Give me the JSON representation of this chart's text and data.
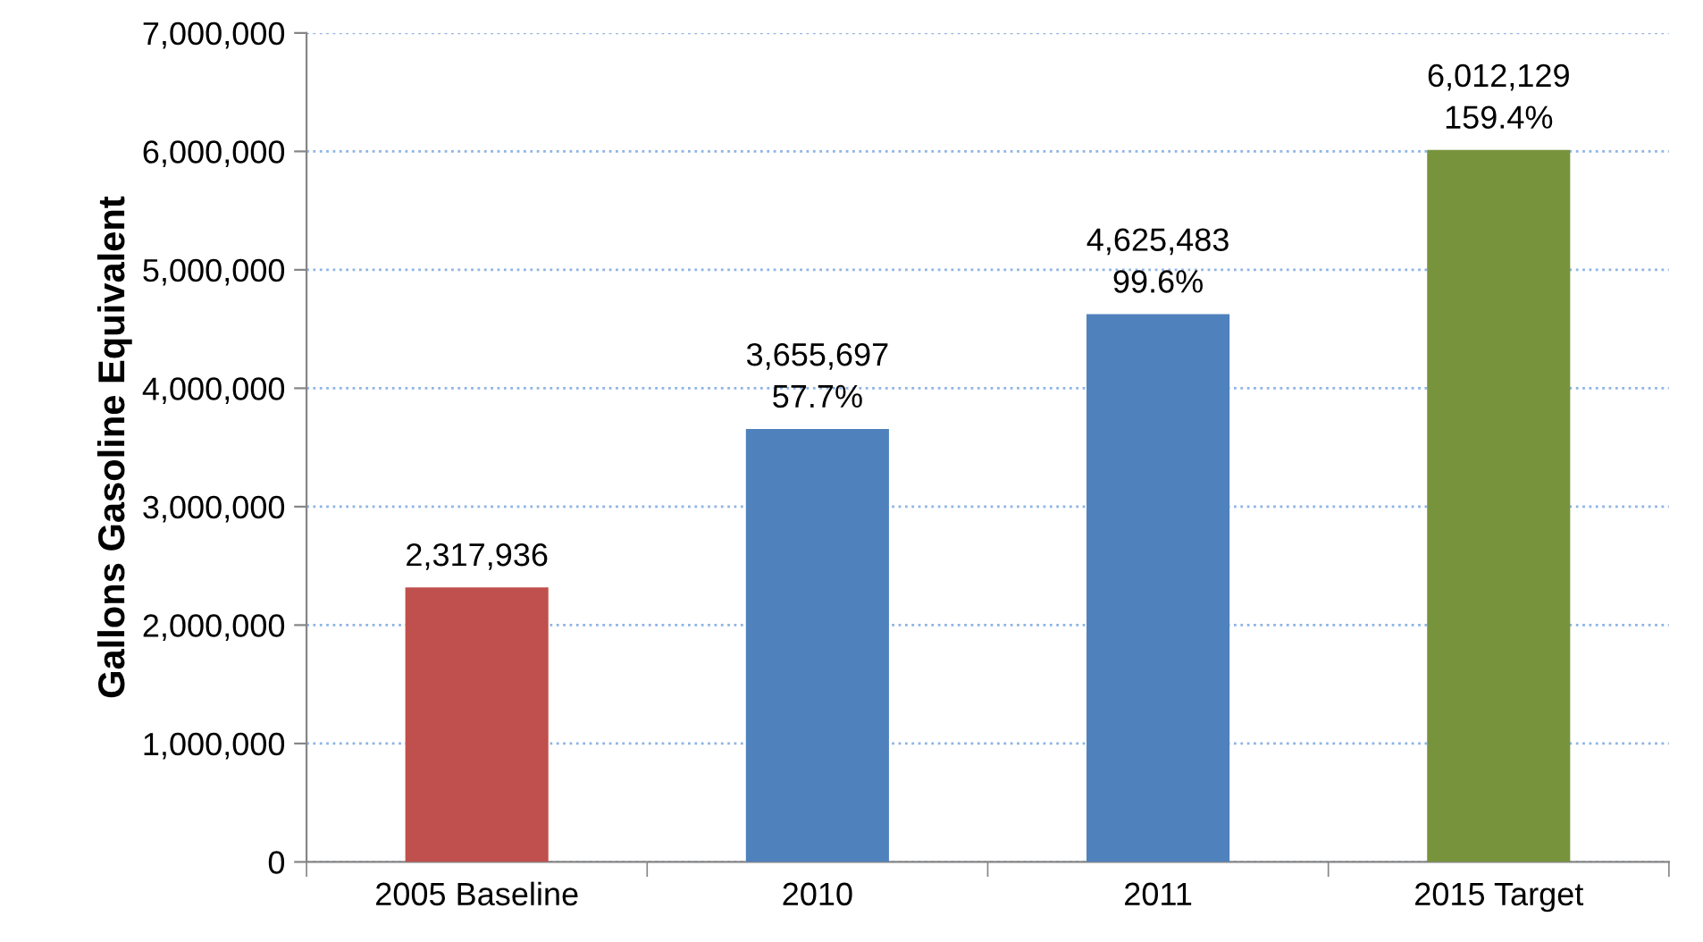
{
  "chart_data": {
    "type": "bar",
    "ylabel": "Gallons Gasoline Equivalent",
    "categories": [
      "2005 Baseline",
      "2010",
      "2011",
      "2015 Target"
    ],
    "values": [
      2317936,
      3655697,
      4625483,
      6012129
    ],
    "colors": [
      "#c0504d",
      "#4f81bd",
      "#4f81bd",
      "#77933c"
    ],
    "value_labels": [
      "2,317,936",
      "3,655,697\n57.7%",
      "4,625,483\n99.6%",
      "6,012,129\n159.4%"
    ],
    "ylim": [
      0,
      7000000
    ],
    "yticks": [
      {
        "value": 0,
        "label": "0"
      },
      {
        "value": 1000000,
        "label": "1,000,000"
      },
      {
        "value": 2000000,
        "label": "2,000,000"
      },
      {
        "value": 3000000,
        "label": "3,000,000"
      },
      {
        "value": 4000000,
        "label": "4,000,000"
      },
      {
        "value": 5000000,
        "label": "5,000,000"
      },
      {
        "value": 6000000,
        "label": "6,000,000"
      },
      {
        "value": 7000000,
        "label": "7,000,000"
      }
    ],
    "grid": "y"
  }
}
